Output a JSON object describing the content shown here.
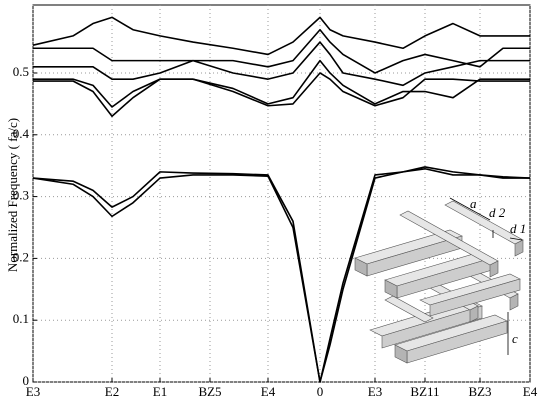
{
  "chart_data": {
    "type": "line",
    "y_label": "Normalized Frequency (   fa/c)",
    "x": [
      0,
      40,
      60,
      79,
      100,
      127,
      160,
      200,
      235,
      260,
      287,
      297,
      310,
      342,
      370,
      392,
      420,
      447,
      470,
      497
    ],
    "xlim": [
      0,
      497
    ],
    "xticks": [
      {
        "value": 0,
        "label": "E3"
      },
      {
        "value": 79,
        "label": "E2"
      },
      {
        "value": 127,
        "label": "E1"
      },
      {
        "value": 177,
        "label": "BZ5"
      },
      {
        "value": 235,
        "label": "E4"
      },
      {
        "value": 287,
        "label": "0"
      },
      {
        "value": 342,
        "label": "E3"
      },
      {
        "value": 392,
        "label": "BZ11"
      },
      {
        "value": 447,
        "label": "BZ3"
      },
      {
        "value": 497,
        "label": "E4"
      }
    ],
    "ylim": [
      0,
      0.61
    ],
    "yticks": [
      0,
      0.1,
      0.2,
      0.3,
      0.4,
      0.5
    ],
    "grid": true,
    "color": "#000000",
    "series": [
      {
        "values": [
          0.33,
          0.32,
          0.3,
          0.268,
          0.29,
          0.33,
          0.335,
          0.335,
          0.333,
          0.25,
          0.0,
          0.06,
          0.15,
          0.33,
          0.34,
          0.345,
          0.335,
          0.335,
          0.33,
          0.33
        ]
      },
      {
        "values": [
          0.33,
          0.325,
          0.31,
          0.283,
          0.3,
          0.34,
          0.338,
          0.337,
          0.335,
          0.26,
          0.0,
          0.07,
          0.16,
          0.335,
          0.34,
          0.348,
          0.34,
          0.335,
          0.332,
          0.33
        ]
      },
      {
        "values": [
          0.487,
          0.487,
          0.47,
          0.43,
          0.46,
          0.49,
          0.49,
          0.47,
          0.447,
          0.45,
          0.5,
          0.49,
          0.47,
          0.447,
          0.46,
          0.49,
          0.49,
          0.487,
          0.487,
          0.487
        ]
      },
      {
        "values": [
          0.49,
          0.49,
          0.48,
          0.445,
          0.47,
          0.49,
          0.49,
          0.475,
          0.45,
          0.46,
          0.52,
          0.5,
          0.48,
          0.45,
          0.47,
          0.47,
          0.46,
          0.49,
          0.49,
          0.49
        ]
      },
      {
        "values": [
          0.51,
          0.51,
          0.51,
          0.49,
          0.49,
          0.5,
          0.52,
          0.5,
          0.49,
          0.5,
          0.55,
          0.53,
          0.5,
          0.49,
          0.48,
          0.5,
          0.51,
          0.52,
          0.52,
          0.52
        ]
      },
      {
        "values": [
          0.54,
          0.54,
          0.54,
          0.52,
          0.52,
          0.52,
          0.52,
          0.52,
          0.51,
          0.52,
          0.57,
          0.55,
          0.53,
          0.5,
          0.52,
          0.53,
          0.52,
          0.51,
          0.54,
          0.54
        ]
      },
      {
        "values": [
          0.545,
          0.56,
          0.58,
          0.59,
          0.57,
          0.56,
          0.55,
          0.54,
          0.53,
          0.55,
          0.59,
          0.57,
          0.56,
          0.55,
          0.54,
          0.56,
          0.58,
          0.56,
          0.56,
          0.56
        ]
      }
    ],
    "inset_labels": {
      "a": "a",
      "d2": "d 2",
      "d1": "d 1",
      "c": "c"
    }
  }
}
